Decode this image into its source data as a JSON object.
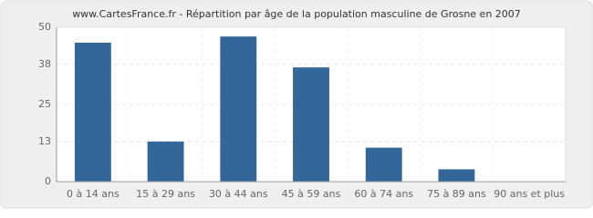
{
  "chart_data": {
    "type": "bar",
    "title": "www.CartesFrance.fr - Répartition par âge de la population masculine de Grosne en 2007",
    "categories": [
      "0 à 14 ans",
      "15 à 29 ans",
      "30 à 44 ans",
      "45 à 59 ans",
      "60 à 74 ans",
      "75 à 89 ans",
      "90 ans et plus"
    ],
    "values": [
      45,
      13,
      47,
      37,
      11,
      4,
      0
    ],
    "color": "#336699",
    "ylim": [
      0,
      50
    ],
    "yticks": [
      0,
      13,
      25,
      38,
      50
    ],
    "grid": true
  }
}
